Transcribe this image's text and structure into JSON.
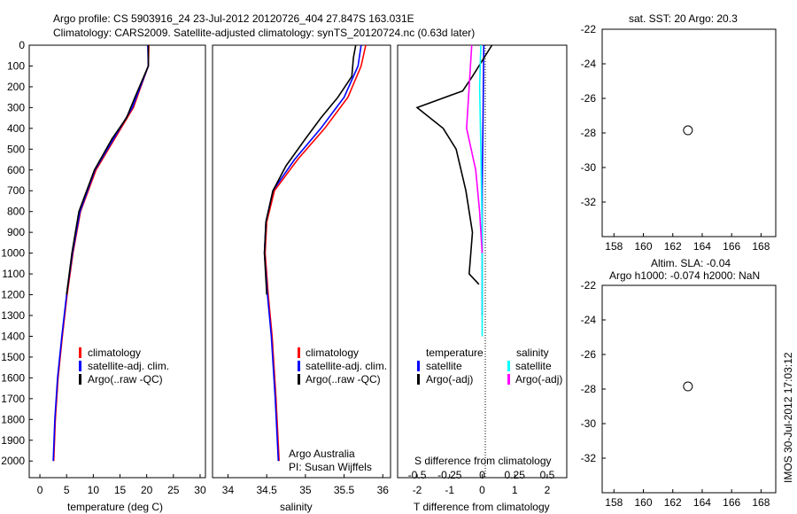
{
  "title_line1": "Argo profile: CS 5903916_24 23-Jul-2012 20120726_404 27.847S 163.031E",
  "title_line2": "Climatology: CARS2009. Satellite-adjusted climatology: synTS_20120724.nc (0.63d later)",
  "timestamp": "IMOS 30-Jul-2012 17:03:12",
  "colors": {
    "climatology": "#ff0000",
    "satellite": "#0000ff",
    "argo": "#000000",
    "salinity_satellite": "#00ffff",
    "salinity_argo": "#ff00ff"
  },
  "depth_axis": {
    "ticks": [
      "0",
      "100",
      "200",
      "300",
      "400",
      "500",
      "600",
      "700",
      "800",
      "900",
      "1000",
      "1100",
      "1200",
      "1300",
      "1400",
      "1500",
      "1600",
      "1700",
      "1800",
      "1900",
      "2000"
    ],
    "ylim": [
      0,
      2080
    ]
  },
  "panels": {
    "temperature": {
      "xlabel": "temperature (deg C)",
      "xticks": [
        "0",
        "5",
        "10",
        "15",
        "20",
        "25",
        "30"
      ],
      "xlim": [
        -2,
        31
      ],
      "legend": [
        "climatology",
        "satellite-adj. clim.",
        "Argo(..raw -QC)"
      ]
    },
    "salinity": {
      "xlabel": "salinity",
      "xticks": [
        "34",
        "34.5",
        "35",
        "35.5",
        "36"
      ],
      "xlim": [
        33.8,
        36.1
      ],
      "legend": [
        "climatology",
        "satellite-adj. clim.",
        "Argo(..raw -QC)"
      ],
      "note_line1": "Argo Australia",
      "note_line2": "PI: Susan Wijffels"
    },
    "difference": {
      "top_xlabel": "S difference from climatology",
      "top_xticks": [
        "-0.5",
        "-0.25",
        "0",
        "0.25",
        "0.5"
      ],
      "xlabel": "T difference from climatology",
      "xticks": [
        "-2",
        "-1",
        "0",
        "1",
        "2"
      ],
      "xlim": [
        -2.6,
        2.6
      ],
      "legend_temperature_title": "temperature",
      "legend_salinity_title": "salinity",
      "legend_satellite": "satellite",
      "legend_argo": "Argo(-adj)"
    }
  },
  "maps": {
    "top_title": "sat. SST: 20 Argo: 20.3",
    "bottom_title_line1": "Altim. SLA: -0.04",
    "bottom_title_line2": "Argo h1000: -0.074 h2000: NaN",
    "yticks": [
      "-22",
      "-24",
      "-26",
      "-28",
      "-30",
      "-32"
    ],
    "xticks": [
      "158",
      "160",
      "162",
      "164",
      "166",
      "168"
    ],
    "lat_range": [
      -34,
      -22
    ],
    "lon_range": [
      157.2,
      169
    ],
    "argo_position": {
      "lon": 163.031,
      "lat": -27.847
    }
  },
  "chart_data": [
    {
      "type": "line",
      "title": "",
      "xlabel": "temperature (deg C)",
      "ylabel": "",
      "xlim": [
        -2,
        31
      ],
      "ylim": [
        2080,
        0
      ],
      "series": [
        {
          "name": "climatology",
          "points": [
            [
              20.4,
              0
            ],
            [
              20.3,
              100
            ],
            [
              17.5,
              300
            ],
            [
              14.0,
              450
            ],
            [
              10.5,
              600
            ],
            [
              7.6,
              800
            ],
            [
              6.2,
              1000
            ],
            [
              5.1,
              1200
            ],
            [
              4.2,
              1400
            ],
            [
              3.4,
              1600
            ],
            [
              2.9,
              1800
            ],
            [
              2.6,
              2000
            ]
          ]
        },
        {
          "name": "satellite-adj. clim.",
          "points": [
            [
              20.2,
              0
            ],
            [
              20.3,
              100
            ],
            [
              17.3,
              300
            ],
            [
              13.8,
              450
            ],
            [
              10.3,
              600
            ],
            [
              7.5,
              800
            ],
            [
              6.1,
              1000
            ],
            [
              5.0,
              1200
            ],
            [
              4.1,
              1400
            ],
            [
              3.3,
              1600
            ],
            [
              2.8,
              1800
            ],
            [
              2.5,
              2000
            ]
          ]
        },
        {
          "name": "Argo(..raw -QC)",
          "points": [
            [
              20.3,
              0
            ],
            [
              20.3,
              100
            ],
            [
              17.8,
              250
            ],
            [
              16.2,
              350
            ],
            [
              13.5,
              450
            ],
            [
              10.2,
              600
            ],
            [
              7.3,
              800
            ],
            [
              6.0,
              1000
            ],
            [
              5.0,
              1200
            ]
          ]
        }
      ]
    },
    {
      "type": "line",
      "title": "",
      "xlabel": "salinity",
      "ylabel": "",
      "xlim": [
        33.8,
        36.1
      ],
      "ylim": [
        2080,
        0
      ],
      "series": [
        {
          "name": "climatology",
          "points": [
            [
              35.78,
              0
            ],
            [
              35.72,
              100
            ],
            [
              35.55,
              250
            ],
            [
              35.25,
              400
            ],
            [
              34.9,
              550
            ],
            [
              34.6,
              700
            ],
            [
              34.5,
              850
            ],
            [
              34.48,
              1000
            ],
            [
              34.52,
              1200
            ],
            [
              34.57,
              1400
            ],
            [
              34.62,
              1700
            ],
            [
              34.66,
              2000
            ]
          ]
        },
        {
          "name": "satellite-adj. clim.",
          "points": [
            [
              35.72,
              0
            ],
            [
              35.68,
              100
            ],
            [
              35.5,
              250
            ],
            [
              35.2,
              400
            ],
            [
              34.86,
              550
            ],
            [
              34.58,
              700
            ],
            [
              34.49,
              850
            ],
            [
              34.47,
              1000
            ],
            [
              34.51,
              1200
            ],
            [
              34.56,
              1400
            ],
            [
              34.61,
              1700
            ],
            [
              34.65,
              2000
            ]
          ]
        },
        {
          "name": "Argo(..raw -QC)",
          "points": [
            [
              35.65,
              0
            ],
            [
              35.62,
              60
            ],
            [
              35.6,
              150
            ],
            [
              35.42,
              250
            ],
            [
              35.2,
              350
            ],
            [
              35.0,
              450
            ],
            [
              34.75,
              580
            ],
            [
              34.58,
              700
            ],
            [
              34.49,
              850
            ],
            [
              34.47,
              1000
            ],
            [
              34.5,
              1200
            ]
          ]
        }
      ]
    },
    {
      "type": "line",
      "title": "",
      "xlabel": "T difference from climatology",
      "ylabel": "",
      "xlim": [
        -2.6,
        2.6
      ],
      "ylim": [
        2080,
        0
      ],
      "series": [
        {
          "name": "satellite",
          "points": [
            [
              0.05,
              0
            ],
            [
              0.03,
              300
            ],
            [
              0.0,
              700
            ],
            [
              0.0,
              1000
            ],
            [
              0.0,
              1200
            ],
            [
              0.0,
              1300
            ]
          ]
        },
        {
          "name": "Argo(-adj)",
          "points": [
            [
              0.3,
              0
            ],
            [
              -0.3,
              150
            ],
            [
              -0.6,
              220
            ],
            [
              -2.0,
              300
            ],
            [
              -1.2,
              400
            ],
            [
              -0.8,
              500
            ],
            [
              -0.5,
              700
            ],
            [
              -0.3,
              900
            ],
            [
              -0.4,
              1100
            ],
            [
              -0.1,
              1150
            ]
          ]
        }
      ]
    },
    {
      "type": "line",
      "title": "",
      "xlabel": "S difference from climatology",
      "ylabel": "",
      "xlim": [
        -0.65,
        0.65
      ],
      "ylim": [
        2080,
        0
      ],
      "series": [
        {
          "name": "satellite",
          "points": [
            [
              -0.01,
              0
            ],
            [
              -0.02,
              200
            ],
            [
              -0.01,
              500
            ],
            [
              0.0,
              900
            ],
            [
              0.0,
              1300
            ],
            [
              0.0,
              1400
            ]
          ]
        },
        {
          "name": "Argo(-adj)",
          "points": [
            [
              -0.08,
              0
            ],
            [
              -0.1,
              200
            ],
            [
              -0.12,
              400
            ],
            [
              -0.05,
              600
            ],
            [
              -0.02,
              800
            ],
            [
              0.0,
              1000
            ]
          ]
        }
      ]
    }
  ]
}
